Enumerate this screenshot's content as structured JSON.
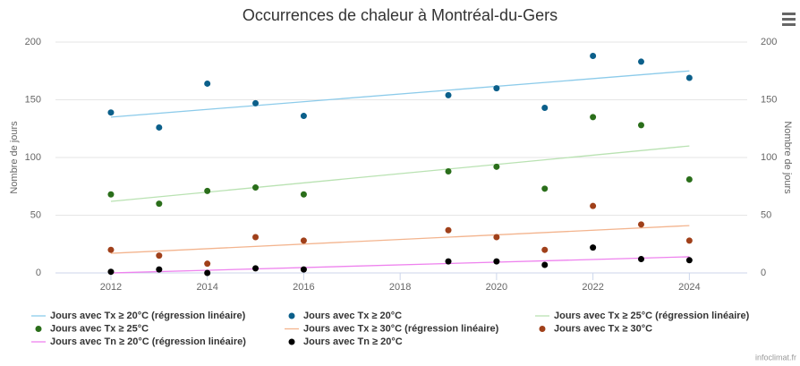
{
  "chart_data": {
    "type": "scatter",
    "title": "Occurrences de chaleur à Montréal-du-Gers",
    "y_label": "Nombre de jours",
    "y2_label": "Nombre de jours",
    "credit": "infoclimat.fr",
    "xlim": [
      2010.85,
      2025.2
    ],
    "xticks": [
      2012,
      2014,
      2016,
      2018,
      2020,
      2022,
      2024
    ],
    "ylim": [
      0,
      200
    ],
    "yticks": [
      0,
      50,
      100,
      150,
      200
    ],
    "y2lim": [
      0,
      200
    ],
    "y2ticks": [
      0,
      50,
      100,
      150,
      200
    ],
    "grid": true,
    "legend": "bottom",
    "series": [
      {
        "name": "Jours avec Tx ≥ 20°C (régression linéaire)",
        "type": "line",
        "color": "#8ccbea",
        "x": [
          2012,
          2024
        ],
        "values": [
          135,
          175
        ]
      },
      {
        "name": "Jours avec Tx ≥ 20°C",
        "type": "scatter",
        "color": "#0b5f8a",
        "x": [
          2012,
          2013,
          2014,
          2015,
          2016,
          2019,
          2020,
          2021,
          2022,
          2023,
          2024
        ],
        "values": [
          139,
          126,
          164,
          147,
          136,
          154,
          160,
          143,
          188,
          183,
          169
        ]
      },
      {
        "name": "Jours avec Tx ≥ 25°C (régression linéaire)",
        "type": "line",
        "color": "#b9e2b2",
        "x": [
          2012,
          2024
        ],
        "values": [
          62,
          110
        ]
      },
      {
        "name": "Jours avec Tx ≥ 25°C",
        "type": "scatter",
        "color": "#2a6e1a",
        "x": [
          2012,
          2013,
          2014,
          2015,
          2016,
          2019,
          2020,
          2021,
          2022,
          2023,
          2024
        ],
        "values": [
          68,
          60,
          71,
          74,
          68,
          88,
          92,
          73,
          135,
          128,
          81
        ]
      },
      {
        "name": "Jours avec Tx ≥ 30°C (régression linéaire)",
        "type": "line",
        "color": "#f3b48e",
        "x": [
          2012,
          2024
        ],
        "values": [
          17,
          41
        ]
      },
      {
        "name": "Jours avec Tx ≥ 30°C",
        "type": "scatter",
        "color": "#a0401a",
        "x": [
          2012,
          2013,
          2014,
          2015,
          2016,
          2019,
          2020,
          2021,
          2022,
          2023,
          2024
        ],
        "values": [
          20,
          15,
          8,
          31,
          28,
          37,
          31,
          20,
          58,
          42,
          28
        ]
      },
      {
        "name": "Jours avec Tn ≥ 20°C (régression linéaire)",
        "type": "line",
        "color": "#ee82ee",
        "x": [
          2012,
          2024
        ],
        "values": [
          0,
          14
        ]
      },
      {
        "name": "Jours avec Tn ≥ 20°C",
        "type": "scatter",
        "color": "#000000",
        "x": [
          2012,
          2013,
          2014,
          2015,
          2016,
          2019,
          2020,
          2021,
          2022,
          2023,
          2024
        ],
        "values": [
          1,
          3,
          0,
          4,
          3,
          10,
          10,
          7,
          22,
          12,
          11
        ]
      }
    ]
  }
}
